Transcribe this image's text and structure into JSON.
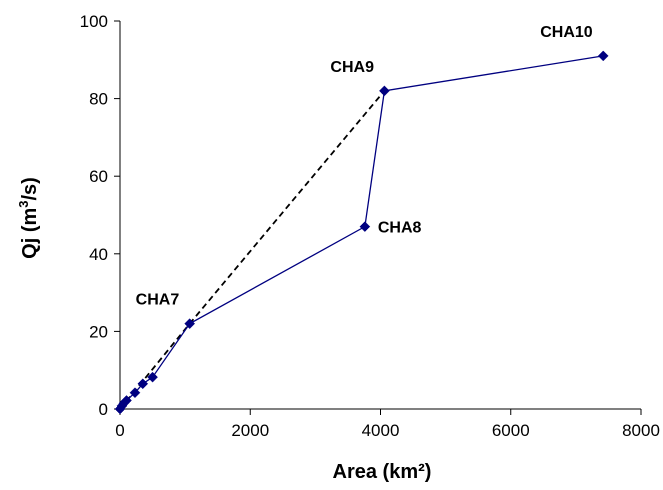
{
  "chart_data": {
    "type": "scatter",
    "xlabel": "Area (km²)",
    "ylabel_parts": {
      "base": "Qj (m",
      "sup": "3",
      "tail": "/s)"
    },
    "xlim": [
      0,
      8000
    ],
    "ylim": [
      0,
      100
    ],
    "xticks": [
      0,
      2000,
      4000,
      6000,
      8000
    ],
    "yticks": [
      0,
      20,
      40,
      60,
      80,
      100
    ],
    "grid": false,
    "marker_color": "#000080",
    "line_color": "#000080",
    "dashed_color": "#000000",
    "series": [
      {
        "style": "solid-line-diamond-markers",
        "x": [
          0,
          30,
          60,
          100,
          230,
          350,
          500,
          1070,
          3760,
          4060,
          7420
        ],
        "y": [
          0,
          0.8,
          1.5,
          2.2,
          4.2,
          6.5,
          8.2,
          22,
          47,
          82,
          91
        ]
      },
      {
        "style": "dashed-line",
        "x": [
          0,
          1070,
          4060
        ],
        "y": [
          0,
          22,
          82
        ]
      }
    ],
    "annotations": [
      {
        "text": "CHA7",
        "x": 1070,
        "y": 22,
        "anchor": "upper-left"
      },
      {
        "text": "CHA8",
        "x": 3760,
        "y": 47,
        "anchor": "right"
      },
      {
        "text": "CHA9",
        "x": 4060,
        "y": 82,
        "anchor": "upper-left"
      },
      {
        "text": "CHA10",
        "x": 7420,
        "y": 91,
        "anchor": "upper-left"
      }
    ]
  }
}
